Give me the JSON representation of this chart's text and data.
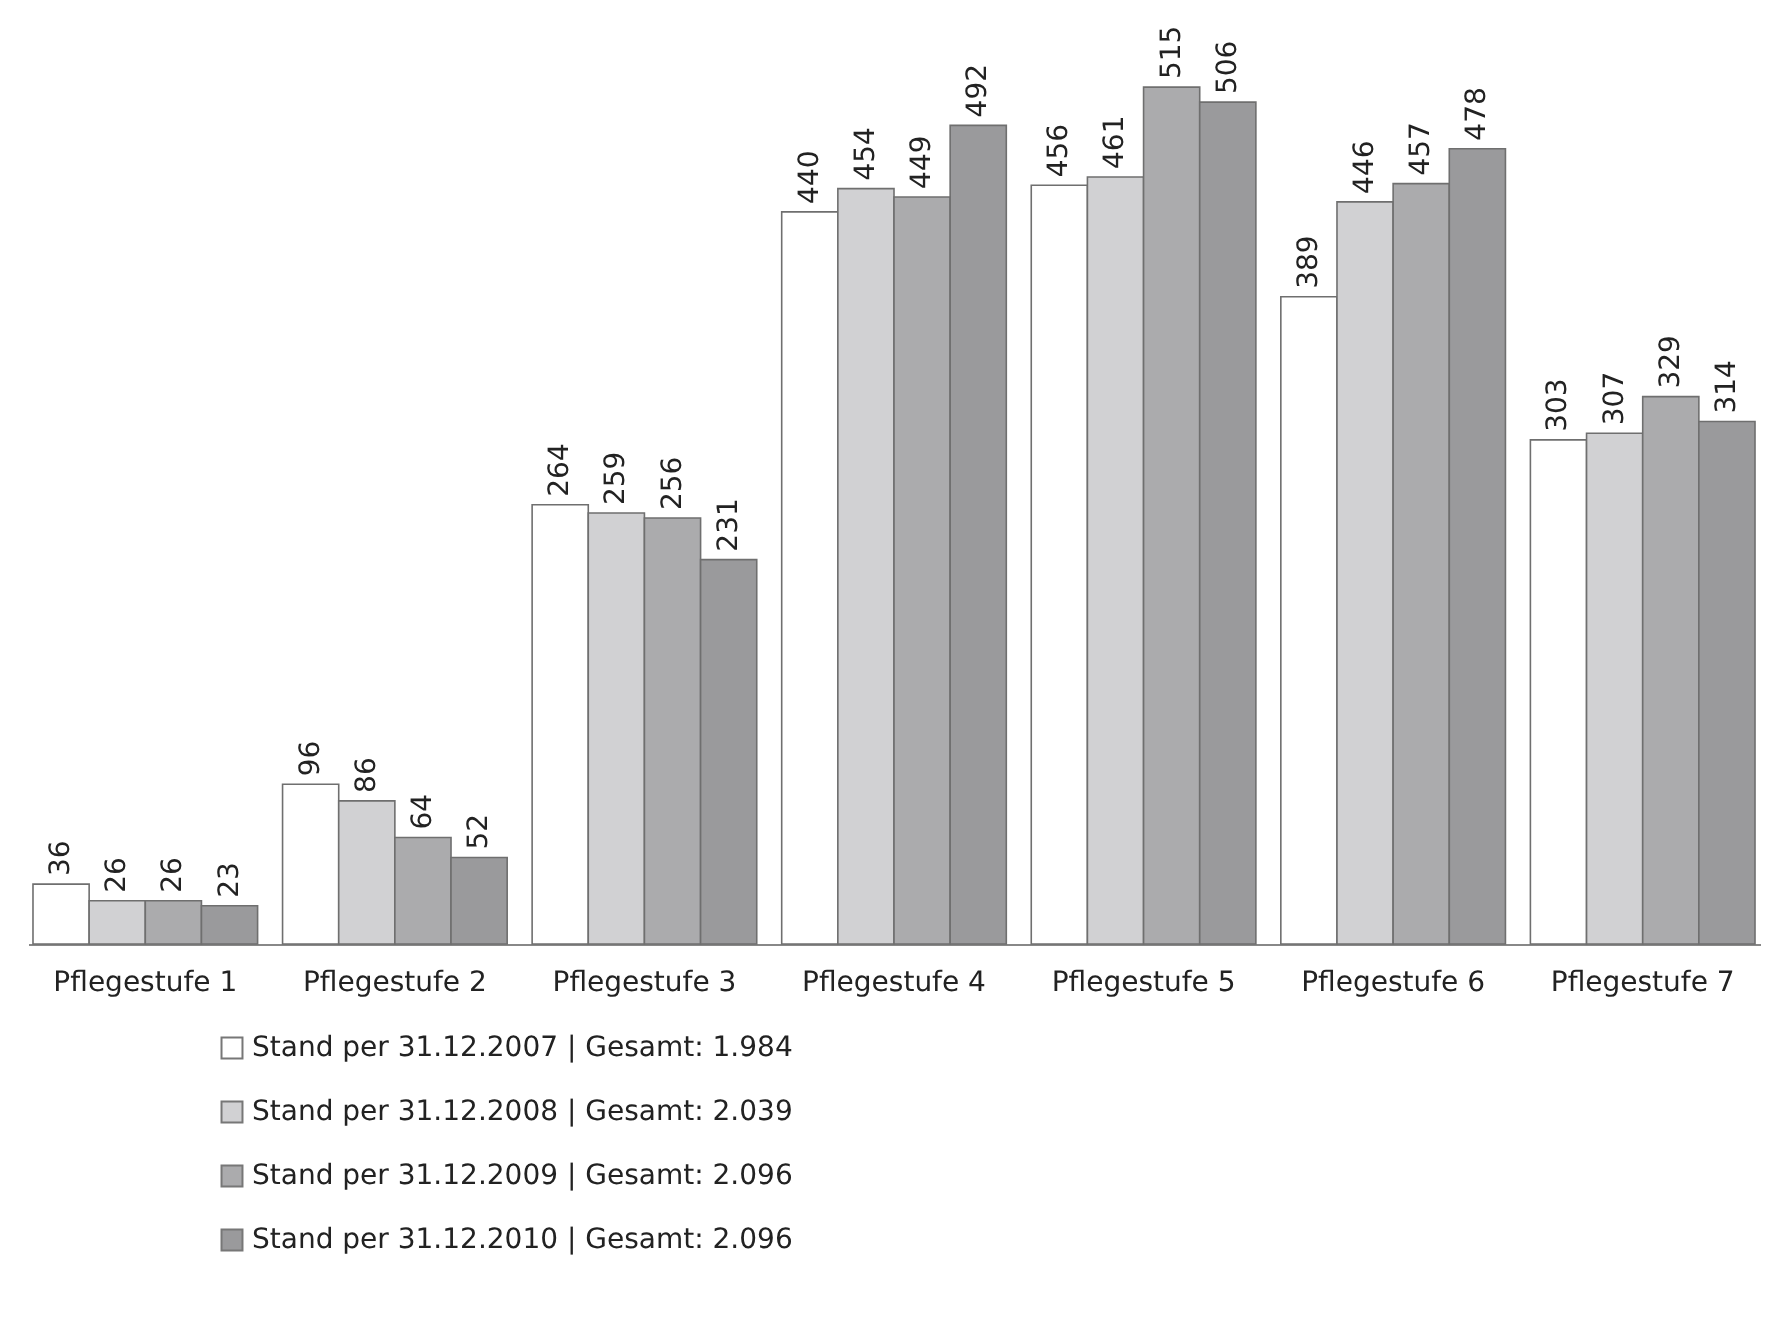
{
  "chart_data": {
    "type": "bar",
    "categories": [
      "Pflegestufe 1",
      "Pflegestufe 2",
      "Pflegestufe 3",
      "Pflegestufe 4",
      "Pflegestufe 5",
      "Pflegestufe 6",
      "Pflegestufe 7"
    ],
    "series": [
      {
        "name": "Stand per 31.12.2007   |   Gesamt: 1.984",
        "color": "#ffffff",
        "values": [
          36,
          96,
          264,
          440,
          456,
          389,
          303
        ]
      },
      {
        "name": "Stand per 31.12.2008   |   Gesamt: 2.039",
        "color": "#d1d1d3",
        "values": [
          26,
          86,
          259,
          454,
          461,
          446,
          307
        ]
      },
      {
        "name": "Stand per 31.12.2009   |   Gesamt: 2.096",
        "color": "#ababad",
        "values": [
          26,
          64,
          256,
          449,
          515,
          457,
          329
        ]
      },
      {
        "name": "Stand per 31.12.2010   |   Gesamt: 2.096",
        "color": "#9a9a9c",
        "values": [
          23,
          52,
          231,
          492,
          506,
          478,
          314
        ]
      }
    ],
    "data_labels": true,
    "legend": "bottom",
    "grid": false
  }
}
